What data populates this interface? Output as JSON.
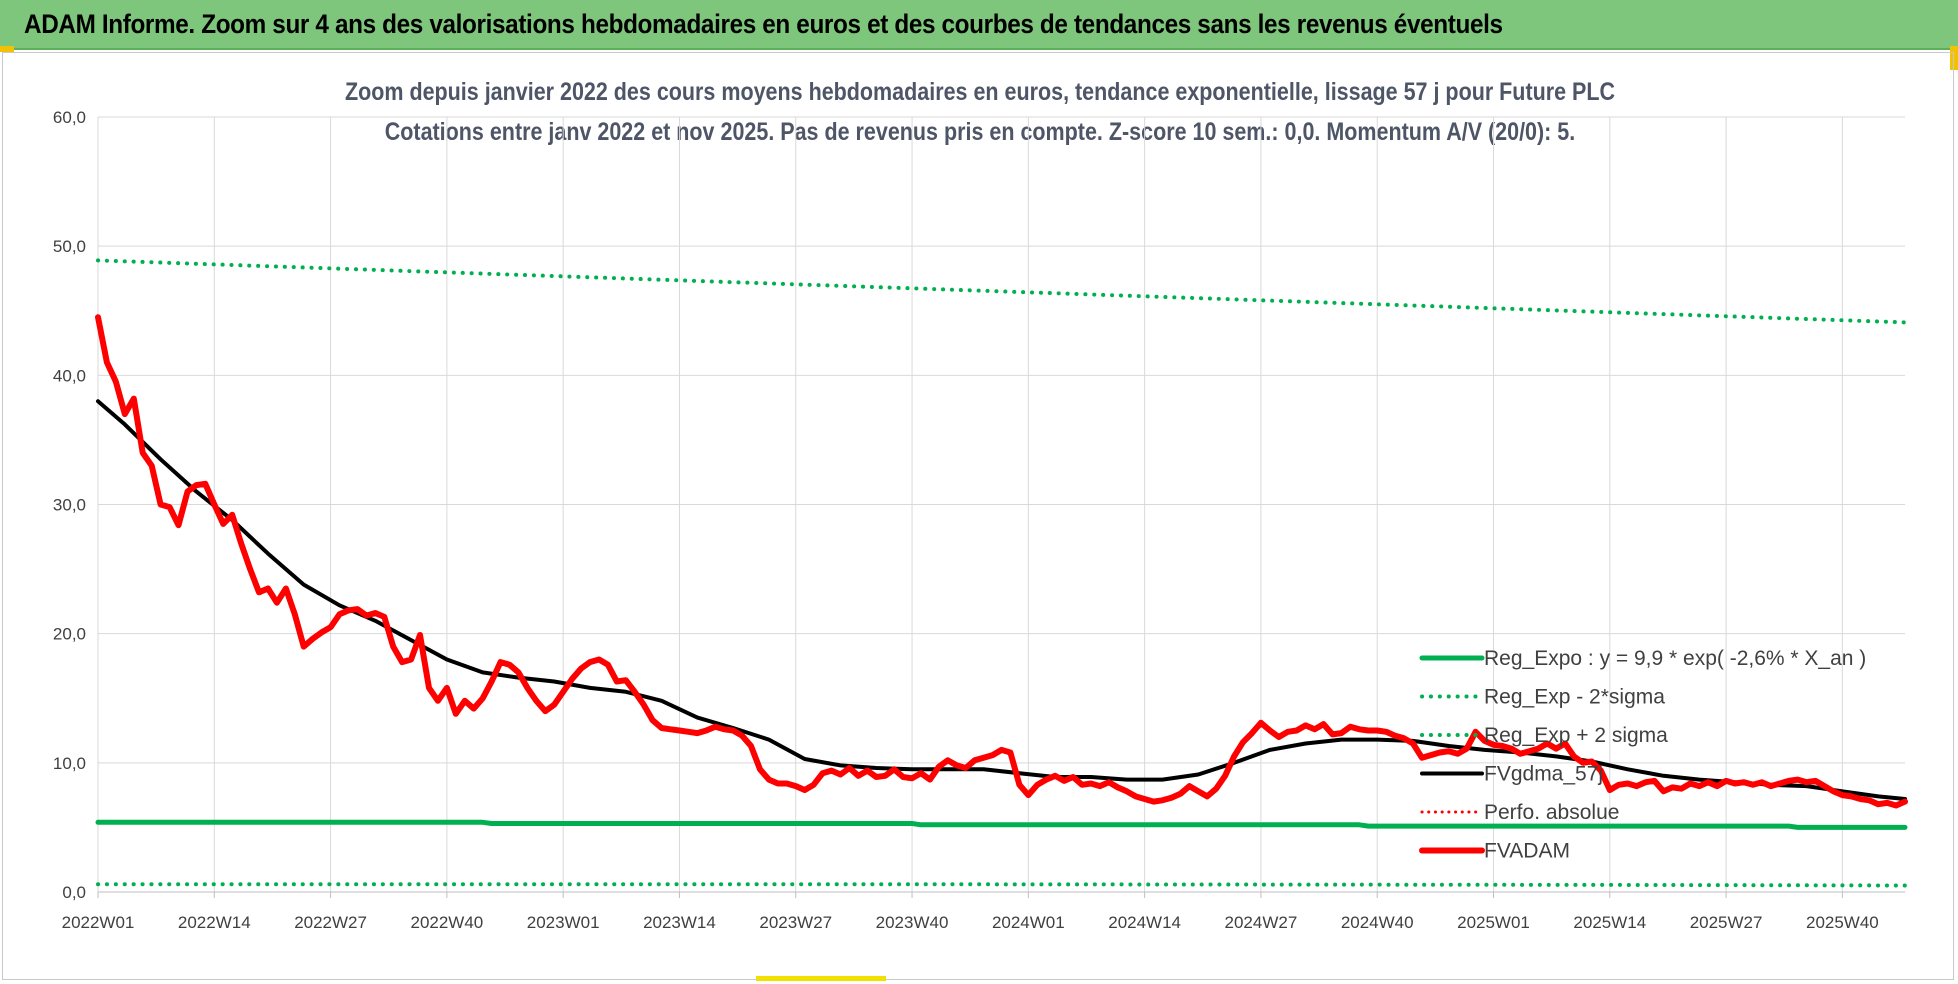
{
  "banner": {
    "title": "ADAM Informe. Zoom sur 4 ans des valorisations hebdomadaires en euros et des courbes de tendances sans les revenus éventuels"
  },
  "colors": {
    "banner_bg": "#7dc67b",
    "reg_expo": "#00b050",
    "price": "#ff0000",
    "moving_avg": "#000000",
    "grid": "#d9d9d9"
  },
  "chart_data": {
    "type": "line",
    "title": "Zoom depuis janvier 2022 des cours moyens hebdomadaires en euros, tendance exponentielle, lissage 57 j pour Future PLC",
    "subtitle": "Cotations entre janv 2022 et nov 2025. Pas de revenus pris en compte. Z-score 10 sem.: 0,0. Momentum A/V (20/0): 5.",
    "xlabel": "",
    "ylabel": "",
    "ylim": [
      0,
      60
    ],
    "yticks": [
      "0,0",
      "10,0",
      "20,0",
      "30,0",
      "40,0",
      "50,0",
      "60,0"
    ],
    "ytick_values": [
      0,
      10,
      20,
      30,
      40,
      50,
      60
    ],
    "x_range": [
      1,
      203
    ],
    "xticks": [
      "2022W01",
      "2022W14",
      "2022W27",
      "2022W40",
      "2023W01",
      "2023W14",
      "2023W27",
      "2023W40",
      "2024W01",
      "2024W14",
      "2024W27",
      "2024W40",
      "2025W01",
      "2025W14",
      "2025W27",
      "2025W40"
    ],
    "xtick_index": [
      1,
      14,
      27,
      40,
      53,
      66,
      79,
      92,
      105,
      118,
      131,
      144,
      157,
      170,
      183,
      196
    ],
    "legend_position": "bottom-right",
    "series": [
      {
        "name": "Reg_Expo : y = 9,9 * exp( -2,6% *  X_an )",
        "style": "solid",
        "width": 5,
        "color": "#00b050",
        "points": [
          [
            1,
            5.4
          ],
          [
            44,
            5.4
          ],
          [
            45,
            5.3
          ],
          [
            92,
            5.3
          ],
          [
            93,
            5.2
          ],
          [
            142,
            5.2
          ],
          [
            143,
            5.1
          ],
          [
            190,
            5.1
          ],
          [
            191,
            5.0
          ],
          [
            203,
            5.0
          ]
        ]
      },
      {
        "name": "Reg_Exp - 2*sigma",
        "style": "dotted",
        "width": 4,
        "color": "#00b050",
        "points": [
          [
            1,
            0.6
          ],
          [
            100,
            0.6
          ],
          [
            170,
            0.55
          ],
          [
            203,
            0.5
          ]
        ]
      },
      {
        "name": "Reg_Exp + 2 sigma",
        "style": "dotted",
        "width": 4,
        "color": "#00b050",
        "points": [
          [
            1,
            48.9
          ],
          [
            203,
            44.1
          ]
        ]
      },
      {
        "name": "FVgdma_57j",
        "style": "solid",
        "width": 4,
        "color": "#000000",
        "points": [
          [
            1,
            38.0
          ],
          [
            4,
            36.2
          ],
          [
            8,
            33.5
          ],
          [
            12,
            31.0
          ],
          [
            16,
            28.8
          ],
          [
            20,
            26.2
          ],
          [
            24,
            23.8
          ],
          [
            28,
            22.2
          ],
          [
            32,
            21.0
          ],
          [
            36,
            19.5
          ],
          [
            40,
            18.0
          ],
          [
            44,
            17.0
          ],
          [
            48,
            16.6
          ],
          [
            52,
            16.3
          ],
          [
            56,
            15.8
          ],
          [
            60,
            15.5
          ],
          [
            64,
            14.8
          ],
          [
            68,
            13.5
          ],
          [
            72,
            12.7
          ],
          [
            76,
            11.8
          ],
          [
            80,
            10.3
          ],
          [
            84,
            9.8
          ],
          [
            88,
            9.6
          ],
          [
            92,
            9.5
          ],
          [
            96,
            9.5
          ],
          [
            100,
            9.5
          ],
          [
            104,
            9.2
          ],
          [
            108,
            8.9
          ],
          [
            112,
            8.9
          ],
          [
            116,
            8.7
          ],
          [
            120,
            8.7
          ],
          [
            124,
            9.1
          ],
          [
            128,
            10.0
          ],
          [
            132,
            11.0
          ],
          [
            136,
            11.5
          ],
          [
            140,
            11.8
          ],
          [
            144,
            11.8
          ],
          [
            148,
            11.7
          ],
          [
            152,
            11.3
          ],
          [
            156,
            11.0
          ],
          [
            160,
            10.8
          ],
          [
            164,
            10.5
          ],
          [
            168,
            10.1
          ],
          [
            172,
            9.5
          ],
          [
            176,
            9.0
          ],
          [
            180,
            8.7
          ],
          [
            184,
            8.5
          ],
          [
            188,
            8.3
          ],
          [
            192,
            8.2
          ],
          [
            196,
            7.8
          ],
          [
            200,
            7.4
          ],
          [
            203,
            7.2
          ]
        ]
      },
      {
        "name": "Perfo. absolue",
        "style": "dotted",
        "width": 3,
        "color": "#ff0000",
        "points": []
      },
      {
        "name": "FVADAM",
        "style": "solid",
        "width": 6,
        "color": "#ff0000",
        "points": [
          [
            1,
            44.5
          ],
          [
            2,
            41.0
          ],
          [
            3,
            39.5
          ],
          [
            4,
            37.0
          ],
          [
            5,
            38.2
          ],
          [
            6,
            34.0
          ],
          [
            7,
            33.0
          ],
          [
            8,
            30.0
          ],
          [
            9,
            29.8
          ],
          [
            10,
            28.4
          ],
          [
            11,
            31.0
          ],
          [
            12,
            31.5
          ],
          [
            13,
            31.6
          ],
          [
            14,
            30.0
          ],
          [
            15,
            28.5
          ],
          [
            16,
            29.2
          ],
          [
            17,
            27.0
          ],
          [
            18,
            25.0
          ],
          [
            19,
            23.2
          ],
          [
            20,
            23.5
          ],
          [
            21,
            22.4
          ],
          [
            22,
            23.5
          ],
          [
            23,
            21.5
          ],
          [
            24,
            19.0
          ],
          [
            25,
            19.6
          ],
          [
            26,
            20.1
          ],
          [
            27,
            20.5
          ],
          [
            28,
            21.5
          ],
          [
            29,
            21.8
          ],
          [
            30,
            21.9
          ],
          [
            31,
            21.4
          ],
          [
            32,
            21.6
          ],
          [
            33,
            21.3
          ],
          [
            34,
            19.0
          ],
          [
            35,
            17.8
          ],
          [
            36,
            18.0
          ],
          [
            37,
            19.9
          ],
          [
            38,
            15.8
          ],
          [
            39,
            14.8
          ],
          [
            40,
            15.8
          ],
          [
            41,
            13.8
          ],
          [
            42,
            14.8
          ],
          [
            43,
            14.2
          ],
          [
            44,
            15.0
          ],
          [
            45,
            16.3
          ],
          [
            46,
            17.8
          ],
          [
            47,
            17.6
          ],
          [
            48,
            17.0
          ],
          [
            49,
            15.8
          ],
          [
            50,
            14.8
          ],
          [
            51,
            14.0
          ],
          [
            52,
            14.5
          ],
          [
            53,
            15.5
          ],
          [
            54,
            16.5
          ],
          [
            55,
            17.3
          ],
          [
            56,
            17.8
          ],
          [
            57,
            18.0
          ],
          [
            58,
            17.6
          ],
          [
            59,
            16.3
          ],
          [
            60,
            16.4
          ],
          [
            61,
            15.5
          ],
          [
            62,
            14.5
          ],
          [
            63,
            13.3
          ],
          [
            64,
            12.7
          ],
          [
            65,
            12.6
          ],
          [
            66,
            12.5
          ],
          [
            67,
            12.4
          ],
          [
            68,
            12.3
          ],
          [
            69,
            12.5
          ],
          [
            70,
            12.8
          ],
          [
            71,
            12.6
          ],
          [
            72,
            12.5
          ],
          [
            73,
            12.1
          ],
          [
            74,
            11.3
          ],
          [
            75,
            9.5
          ],
          [
            76,
            8.7
          ],
          [
            77,
            8.4
          ],
          [
            78,
            8.4
          ],
          [
            79,
            8.2
          ],
          [
            80,
            7.9
          ],
          [
            81,
            8.3
          ],
          [
            82,
            9.2
          ],
          [
            83,
            9.4
          ],
          [
            84,
            9.1
          ],
          [
            85,
            9.6
          ],
          [
            86,
            9.0
          ],
          [
            87,
            9.4
          ],
          [
            88,
            8.9
          ],
          [
            89,
            9.0
          ],
          [
            90,
            9.5
          ],
          [
            91,
            8.9
          ],
          [
            92,
            8.8
          ],
          [
            93,
            9.2
          ],
          [
            94,
            8.7
          ],
          [
            95,
            9.7
          ],
          [
            96,
            10.2
          ],
          [
            97,
            9.8
          ],
          [
            98,
            9.6
          ],
          [
            99,
            10.2
          ],
          [
            100,
            10.4
          ],
          [
            101,
            10.6
          ],
          [
            102,
            11.0
          ],
          [
            103,
            10.8
          ],
          [
            104,
            8.3
          ],
          [
            105,
            7.5
          ],
          [
            106,
            8.3
          ],
          [
            107,
            8.7
          ],
          [
            108,
            9.0
          ],
          [
            109,
            8.6
          ],
          [
            110,
            8.9
          ],
          [
            111,
            8.3
          ],
          [
            112,
            8.4
          ],
          [
            113,
            8.2
          ],
          [
            114,
            8.5
          ],
          [
            115,
            8.1
          ],
          [
            116,
            7.8
          ],
          [
            117,
            7.4
          ],
          [
            118,
            7.2
          ],
          [
            119,
            7.0
          ],
          [
            120,
            7.1
          ],
          [
            121,
            7.3
          ],
          [
            122,
            7.6
          ],
          [
            123,
            8.2
          ],
          [
            124,
            7.8
          ],
          [
            125,
            7.4
          ],
          [
            126,
            8.0
          ],
          [
            127,
            9.0
          ],
          [
            128,
            10.5
          ],
          [
            129,
            11.6
          ],
          [
            130,
            12.3
          ],
          [
            131,
            13.1
          ],
          [
            132,
            12.5
          ],
          [
            133,
            12.0
          ],
          [
            134,
            12.4
          ],
          [
            135,
            12.5
          ],
          [
            136,
            12.9
          ],
          [
            137,
            12.6
          ],
          [
            138,
            13.0
          ],
          [
            139,
            12.2
          ],
          [
            140,
            12.3
          ],
          [
            141,
            12.8
          ],
          [
            142,
            12.6
          ],
          [
            143,
            12.5
          ],
          [
            144,
            12.5
          ],
          [
            145,
            12.4
          ],
          [
            146,
            12.1
          ],
          [
            147,
            11.9
          ],
          [
            148,
            11.5
          ],
          [
            149,
            10.4
          ],
          [
            150,
            10.6
          ],
          [
            151,
            10.8
          ],
          [
            152,
            10.9
          ],
          [
            153,
            10.7
          ],
          [
            154,
            11.1
          ],
          [
            155,
            12.4
          ],
          [
            156,
            11.7
          ],
          [
            157,
            11.4
          ],
          [
            158,
            11.3
          ],
          [
            159,
            11.1
          ],
          [
            160,
            10.7
          ],
          [
            161,
            10.9
          ],
          [
            162,
            11.1
          ],
          [
            163,
            11.5
          ],
          [
            164,
            11.1
          ],
          [
            165,
            11.5
          ],
          [
            166,
            10.5
          ],
          [
            167,
            10.0
          ],
          [
            168,
            10.1
          ],
          [
            169,
            9.4
          ],
          [
            170,
            7.9
          ],
          [
            171,
            8.3
          ],
          [
            172,
            8.4
          ],
          [
            173,
            8.2
          ],
          [
            174,
            8.5
          ],
          [
            175,
            8.6
          ],
          [
            176,
            7.8
          ],
          [
            177,
            8.1
          ],
          [
            178,
            8.0
          ],
          [
            179,
            8.4
          ],
          [
            180,
            8.2
          ],
          [
            181,
            8.5
          ],
          [
            182,
            8.2
          ],
          [
            183,
            8.6
          ],
          [
            184,
            8.4
          ],
          [
            185,
            8.5
          ],
          [
            186,
            8.3
          ],
          [
            187,
            8.5
          ],
          [
            188,
            8.2
          ],
          [
            189,
            8.4
          ],
          [
            190,
            8.6
          ],
          [
            191,
            8.7
          ],
          [
            192,
            8.5
          ],
          [
            193,
            8.6
          ],
          [
            194,
            8.2
          ],
          [
            195,
            7.8
          ],
          [
            196,
            7.5
          ],
          [
            197,
            7.4
          ],
          [
            198,
            7.2
          ],
          [
            199,
            7.1
          ],
          [
            200,
            6.8
          ],
          [
            201,
            6.9
          ],
          [
            202,
            6.7
          ],
          [
            203,
            7.0
          ]
        ]
      }
    ]
  }
}
